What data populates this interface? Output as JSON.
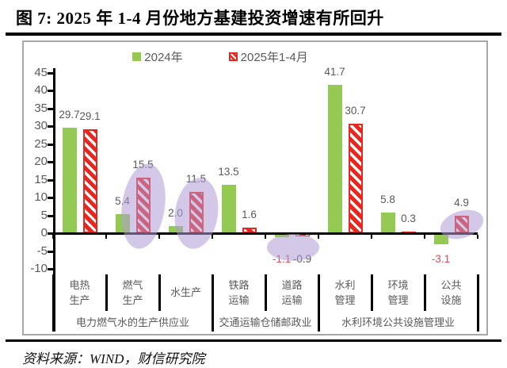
{
  "title": "图 7:  2025 年 1-4 月份地方基建投资增速有所回升",
  "source": "资料来源：WIND，财信研究院",
  "legend": [
    {
      "label": "2024年"
    },
    {
      "label": "2025年1-4月"
    }
  ],
  "palette": {
    "green": "#94C954",
    "red": "#E9251D",
    "label_gray": "#595959",
    "label_negative_red": "#D85058",
    "highlight_purple": "rgba(175,155,212,0.55)",
    "axis_black": "#000000",
    "box_border": "#a8a8a8"
  },
  "chart_data": {
    "type": "bar",
    "title": "2025 年 1-4 月份地方基建投资增速有所回升",
    "categories": [
      "电热\n生产",
      "燃气\n生产",
      "水生产",
      "铁路\n运输",
      "道路\n运输",
      "水利\n管理",
      "环境\n管理",
      "公共\n设施"
    ],
    "category_groups": [
      {
        "label": "电力燃气水的生产供应业",
        "span": 3
      },
      {
        "label": "交通运输仓储邮政业",
        "span": 2
      },
      {
        "label": "水利环境公共设施管理业",
        "span": 3
      }
    ],
    "series": [
      {
        "name": "2024年",
        "style": "solid-green",
        "negative_labels_red": true,
        "values": [
          29.7,
          5.4,
          2.0,
          13.5,
          -1.1,
          41.7,
          5.8,
          -3.1
        ]
      },
      {
        "name": "2025年1-4月",
        "style": "red-hatched",
        "negative_labels_red": false,
        "values": [
          29.1,
          15.5,
          11.5,
          1.6,
          -0.9,
          30.7,
          0.3,
          4.9
        ]
      }
    ],
    "ylim": [
      -10,
      45
    ],
    "yticks": [
      45,
      40,
      35,
      30,
      25,
      20,
      15,
      10,
      5,
      0,
      -5,
      -10
    ],
    "grid": false,
    "legend_position": "top-center",
    "highlights": [
      {
        "category_index": 1,
        "target": "series2"
      },
      {
        "category_index": 2,
        "target": "series2"
      },
      {
        "category_index": 4,
        "target": "both"
      },
      {
        "category_index": 7,
        "target": "series2"
      }
    ]
  }
}
